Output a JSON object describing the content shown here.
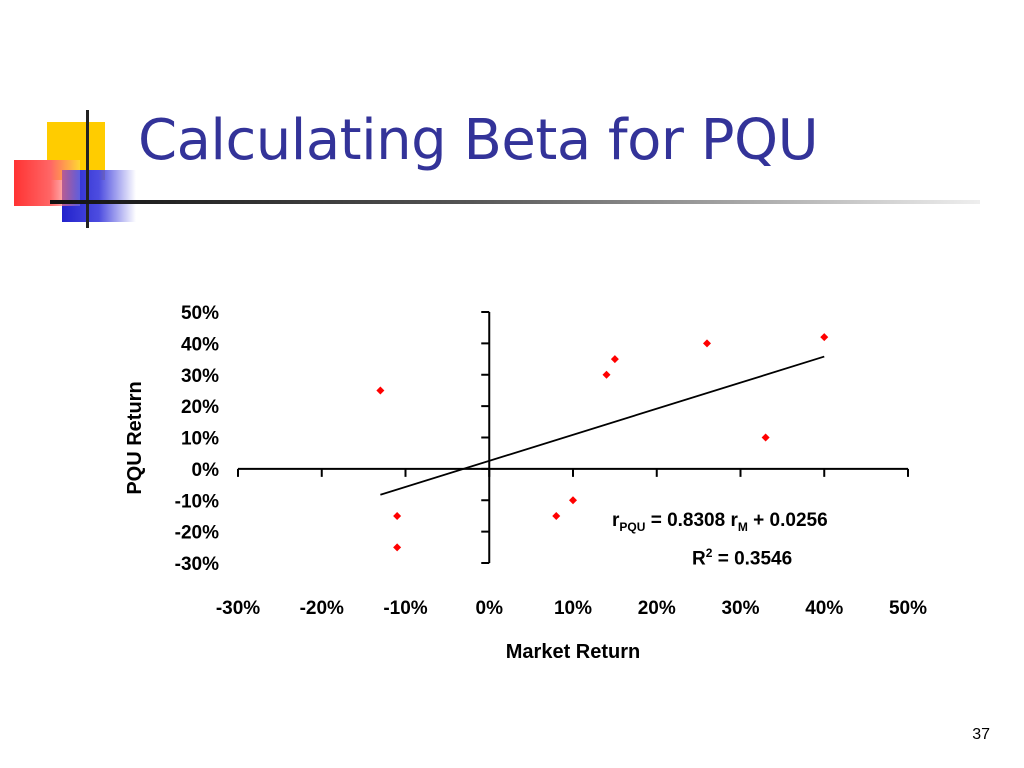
{
  "slide": {
    "title": "Calculating Beta for PQU",
    "page_number": "37"
  },
  "regression": {
    "r": "r",
    "y_sub": "PQU",
    "eq_mid": " = 0.8308 r",
    "x_sub": "M",
    "eq_end": " + 0.0256",
    "r2_label": "R",
    "r2_sup": "2",
    "r2_value": " = 0.3546"
  },
  "colors": {
    "title": "#333399",
    "points": "#ff0000",
    "accent_yellow": "#ffcc00",
    "accent_blue": "#3333cc",
    "accent_red": "#ff3333"
  },
  "chart_data": {
    "type": "scatter",
    "xlabel": "Market Return",
    "ylabel": "PQU Return",
    "xlim": [
      -0.3,
      0.5
    ],
    "ylim": [
      -0.3,
      0.5
    ],
    "x_ticks": [
      "-30%",
      "-20%",
      "-10%",
      "0%",
      "10%",
      "20%",
      "30%",
      "40%",
      "50%"
    ],
    "y_ticks": [
      "50%",
      "40%",
      "30%",
      "20%",
      "10%",
      "0%",
      "-10%",
      "-20%",
      "-30%"
    ],
    "points": [
      {
        "x": -0.13,
        "y": 0.25
      },
      {
        "x": -0.11,
        "y": -0.15
      },
      {
        "x": -0.11,
        "y": -0.25
      },
      {
        "x": 0.08,
        "y": -0.15
      },
      {
        "x": 0.1,
        "y": -0.1
      },
      {
        "x": 0.14,
        "y": 0.3
      },
      {
        "x": 0.15,
        "y": 0.35
      },
      {
        "x": 0.26,
        "y": 0.4
      },
      {
        "x": 0.33,
        "y": 0.1
      },
      {
        "x": 0.4,
        "y": 0.42
      }
    ],
    "trendline": {
      "slope": 0.8308,
      "intercept": 0.0256,
      "x_from": -0.13,
      "x_to": 0.4
    },
    "grid": false
  }
}
